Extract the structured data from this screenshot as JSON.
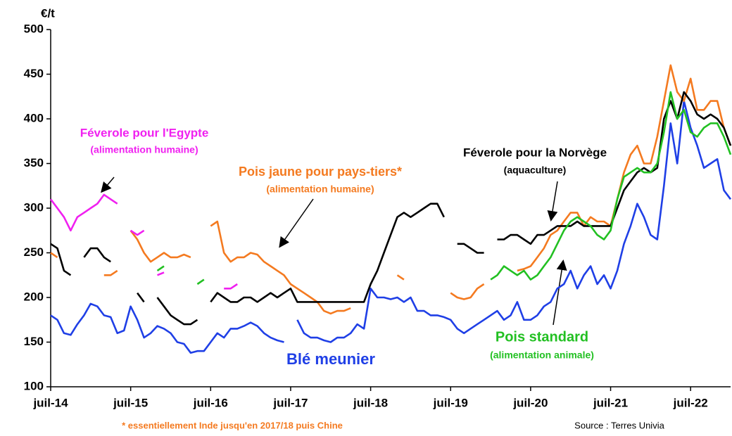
{
  "chart_data": {
    "type": "line",
    "y_label": "€/t",
    "ylim": [
      100,
      500
    ],
    "yticks": [
      100,
      150,
      200,
      250,
      300,
      350,
      400,
      450,
      500
    ],
    "categories": [
      "juil-14",
      null,
      null,
      null,
      null,
      null,
      null,
      null,
      null,
      null,
      null,
      null,
      "juil-15",
      null,
      null,
      null,
      null,
      null,
      null,
      null,
      null,
      null,
      null,
      null,
      "juil-16",
      null,
      null,
      null,
      null,
      null,
      null,
      null,
      null,
      null,
      null,
      null,
      "juil-17",
      null,
      null,
      null,
      null,
      null,
      null,
      null,
      null,
      null,
      null,
      null,
      "juil-18",
      null,
      null,
      null,
      null,
      null,
      null,
      null,
      null,
      null,
      null,
      null,
      "juil-19",
      null,
      null,
      null,
      null,
      null,
      null,
      null,
      null,
      null,
      null,
      null,
      "juil-20",
      null,
      null,
      null,
      null,
      null,
      null,
      null,
      null,
      null,
      null,
      null,
      "juil-21",
      null,
      null,
      null,
      null,
      null,
      null,
      null,
      null,
      null,
      null,
      null,
      "juil-22",
      null,
      null,
      null,
      null,
      null,
      null
    ],
    "series": [
      {
        "name": "Blé meunier",
        "color": "#1f3fe6",
        "values": [
          180,
          175,
          160,
          158,
          170,
          180,
          193,
          190,
          180,
          178,
          160,
          163,
          190,
          175,
          155,
          160,
          168,
          165,
          160,
          150,
          148,
          138,
          140,
          140,
          150,
          160,
          155,
          165,
          165,
          168,
          172,
          168,
          160,
          155,
          152,
          150,
          null,
          175,
          160,
          155,
          155,
          152,
          150,
          155,
          155,
          160,
          170,
          165,
          210,
          200,
          200,
          198,
          200,
          195,
          200,
          185,
          185,
          180,
          180,
          178,
          175,
          165,
          160,
          165,
          170,
          175,
          180,
          185,
          175,
          180,
          195,
          175,
          175,
          180,
          190,
          195,
          210,
          215,
          230,
          210,
          225,
          235,
          215,
          225,
          210,
          230,
          260,
          280,
          305,
          290,
          270,
          265,
          325,
          395,
          350,
          420,
          390,
          370,
          345,
          350,
          355,
          320,
          310
        ]
      },
      {
        "name": "Pois jaune pour pays-tiers*",
        "color": "#f47a20",
        "values": [
          250,
          245,
          null,
          null,
          null,
          null,
          null,
          null,
          225,
          225,
          230,
          null,
          275,
          265,
          250,
          240,
          245,
          250,
          245,
          245,
          248,
          245,
          null,
          null,
          280,
          285,
          250,
          240,
          245,
          245,
          250,
          248,
          240,
          235,
          230,
          225,
          215,
          210,
          205,
          200,
          195,
          185,
          182,
          185,
          185,
          188,
          null,
          null,
          null,
          null,
          null,
          null,
          225,
          220,
          null,
          null,
          null,
          null,
          null,
          null,
          205,
          200,
          198,
          200,
          210,
          215,
          null,
          null,
          null,
          null,
          230,
          232,
          235,
          245,
          255,
          270,
          275,
          285,
          295,
          295,
          280,
          290,
          285,
          285,
          280,
          310,
          340,
          360,
          370,
          350,
          350,
          380,
          420,
          460,
          430,
          420,
          445,
          410,
          410,
          420,
          420,
          390,
          370
        ]
      },
      {
        "name": "Féverole pour la Norvège",
        "color": "#000000",
        "values": [
          260,
          255,
          230,
          225,
          null,
          245,
          255,
          255,
          245,
          240,
          null,
          null,
          null,
          205,
          195,
          null,
          200,
          190,
          180,
          175,
          170,
          170,
          175,
          null,
          195,
          205,
          200,
          195,
          195,
          200,
          200,
          195,
          200,
          205,
          200,
          205,
          210,
          195,
          195,
          195,
          195,
          195,
          195,
          195,
          195,
          195,
          195,
          195,
          215,
          230,
          250,
          270,
          290,
          295,
          290,
          295,
          300,
          305,
          305,
          290,
          null,
          260,
          260,
          255,
          250,
          250,
          null,
          265,
          265,
          270,
          270,
          265,
          260,
          270,
          270,
          275,
          280,
          280,
          280,
          285,
          280,
          280,
          280,
          280,
          280,
          300,
          320,
          330,
          340,
          345,
          340,
          345,
          400,
          420,
          400,
          430,
          420,
          405,
          400,
          405,
          400,
          390,
          370
        ]
      },
      {
        "name": "Pois standard",
        "color": "#22c022",
        "values": [
          null,
          null,
          null,
          null,
          null,
          null,
          null,
          null,
          null,
          null,
          null,
          null,
          null,
          null,
          null,
          null,
          230,
          235,
          null,
          null,
          null,
          null,
          215,
          220,
          null,
          null,
          null,
          null,
          null,
          null,
          null,
          null,
          null,
          null,
          null,
          null,
          null,
          null,
          null,
          null,
          null,
          null,
          null,
          null,
          null,
          null,
          null,
          null,
          null,
          null,
          null,
          null,
          null,
          null,
          null,
          null,
          null,
          null,
          null,
          null,
          null,
          null,
          null,
          null,
          null,
          null,
          220,
          225,
          235,
          230,
          225,
          230,
          220,
          225,
          235,
          245,
          260,
          275,
          285,
          290,
          285,
          280,
          270,
          265,
          275,
          310,
          335,
          340,
          345,
          340,
          340,
          350,
          385,
          430,
          400,
          410,
          385,
          380,
          390,
          395,
          395,
          380,
          360
        ]
      },
      {
        "name": "Féverole pour l'Egypte",
        "color": "#f020f0",
        "values": [
          310,
          300,
          290,
          275,
          290,
          295,
          300,
          305,
          315,
          310,
          305,
          null,
          275,
          270,
          275,
          null,
          225,
          228,
          null,
          null,
          null,
          null,
          null,
          null,
          null,
          null,
          210,
          210,
          215,
          null,
          null,
          null,
          null,
          null,
          null,
          null,
          null,
          null,
          null,
          null,
          null,
          null,
          null,
          null,
          null,
          null,
          null,
          null,
          null,
          null,
          null,
          null,
          null,
          null,
          null,
          null,
          null,
          null,
          null,
          null,
          null,
          null,
          null,
          null,
          null,
          null,
          null,
          null,
          null,
          null,
          null,
          null,
          null,
          null,
          null,
          null,
          null,
          null,
          null,
          null,
          null,
          null,
          null,
          null,
          null,
          null,
          null,
          null,
          null,
          null,
          null,
          null,
          null,
          null,
          null,
          null,
          null,
          null,
          null,
          null,
          null,
          null,
          null
        ]
      }
    ],
    "annotations": [
      {
        "text": "(alimentation humaine)",
        "color": "#f020f0"
      },
      {
        "text": "(alimentation humaine)",
        "color": "#f47a20"
      },
      {
        "text": "(aquaculture)",
        "color": "#000000"
      },
      {
        "text": "(alimentation animale)",
        "color": "#22c022"
      }
    ],
    "footnote": "* essentiellement Inde jusqu'en 2017/18 puis Chine",
    "footnote_color": "#f47a20",
    "source": "Source : Terres Univia"
  }
}
